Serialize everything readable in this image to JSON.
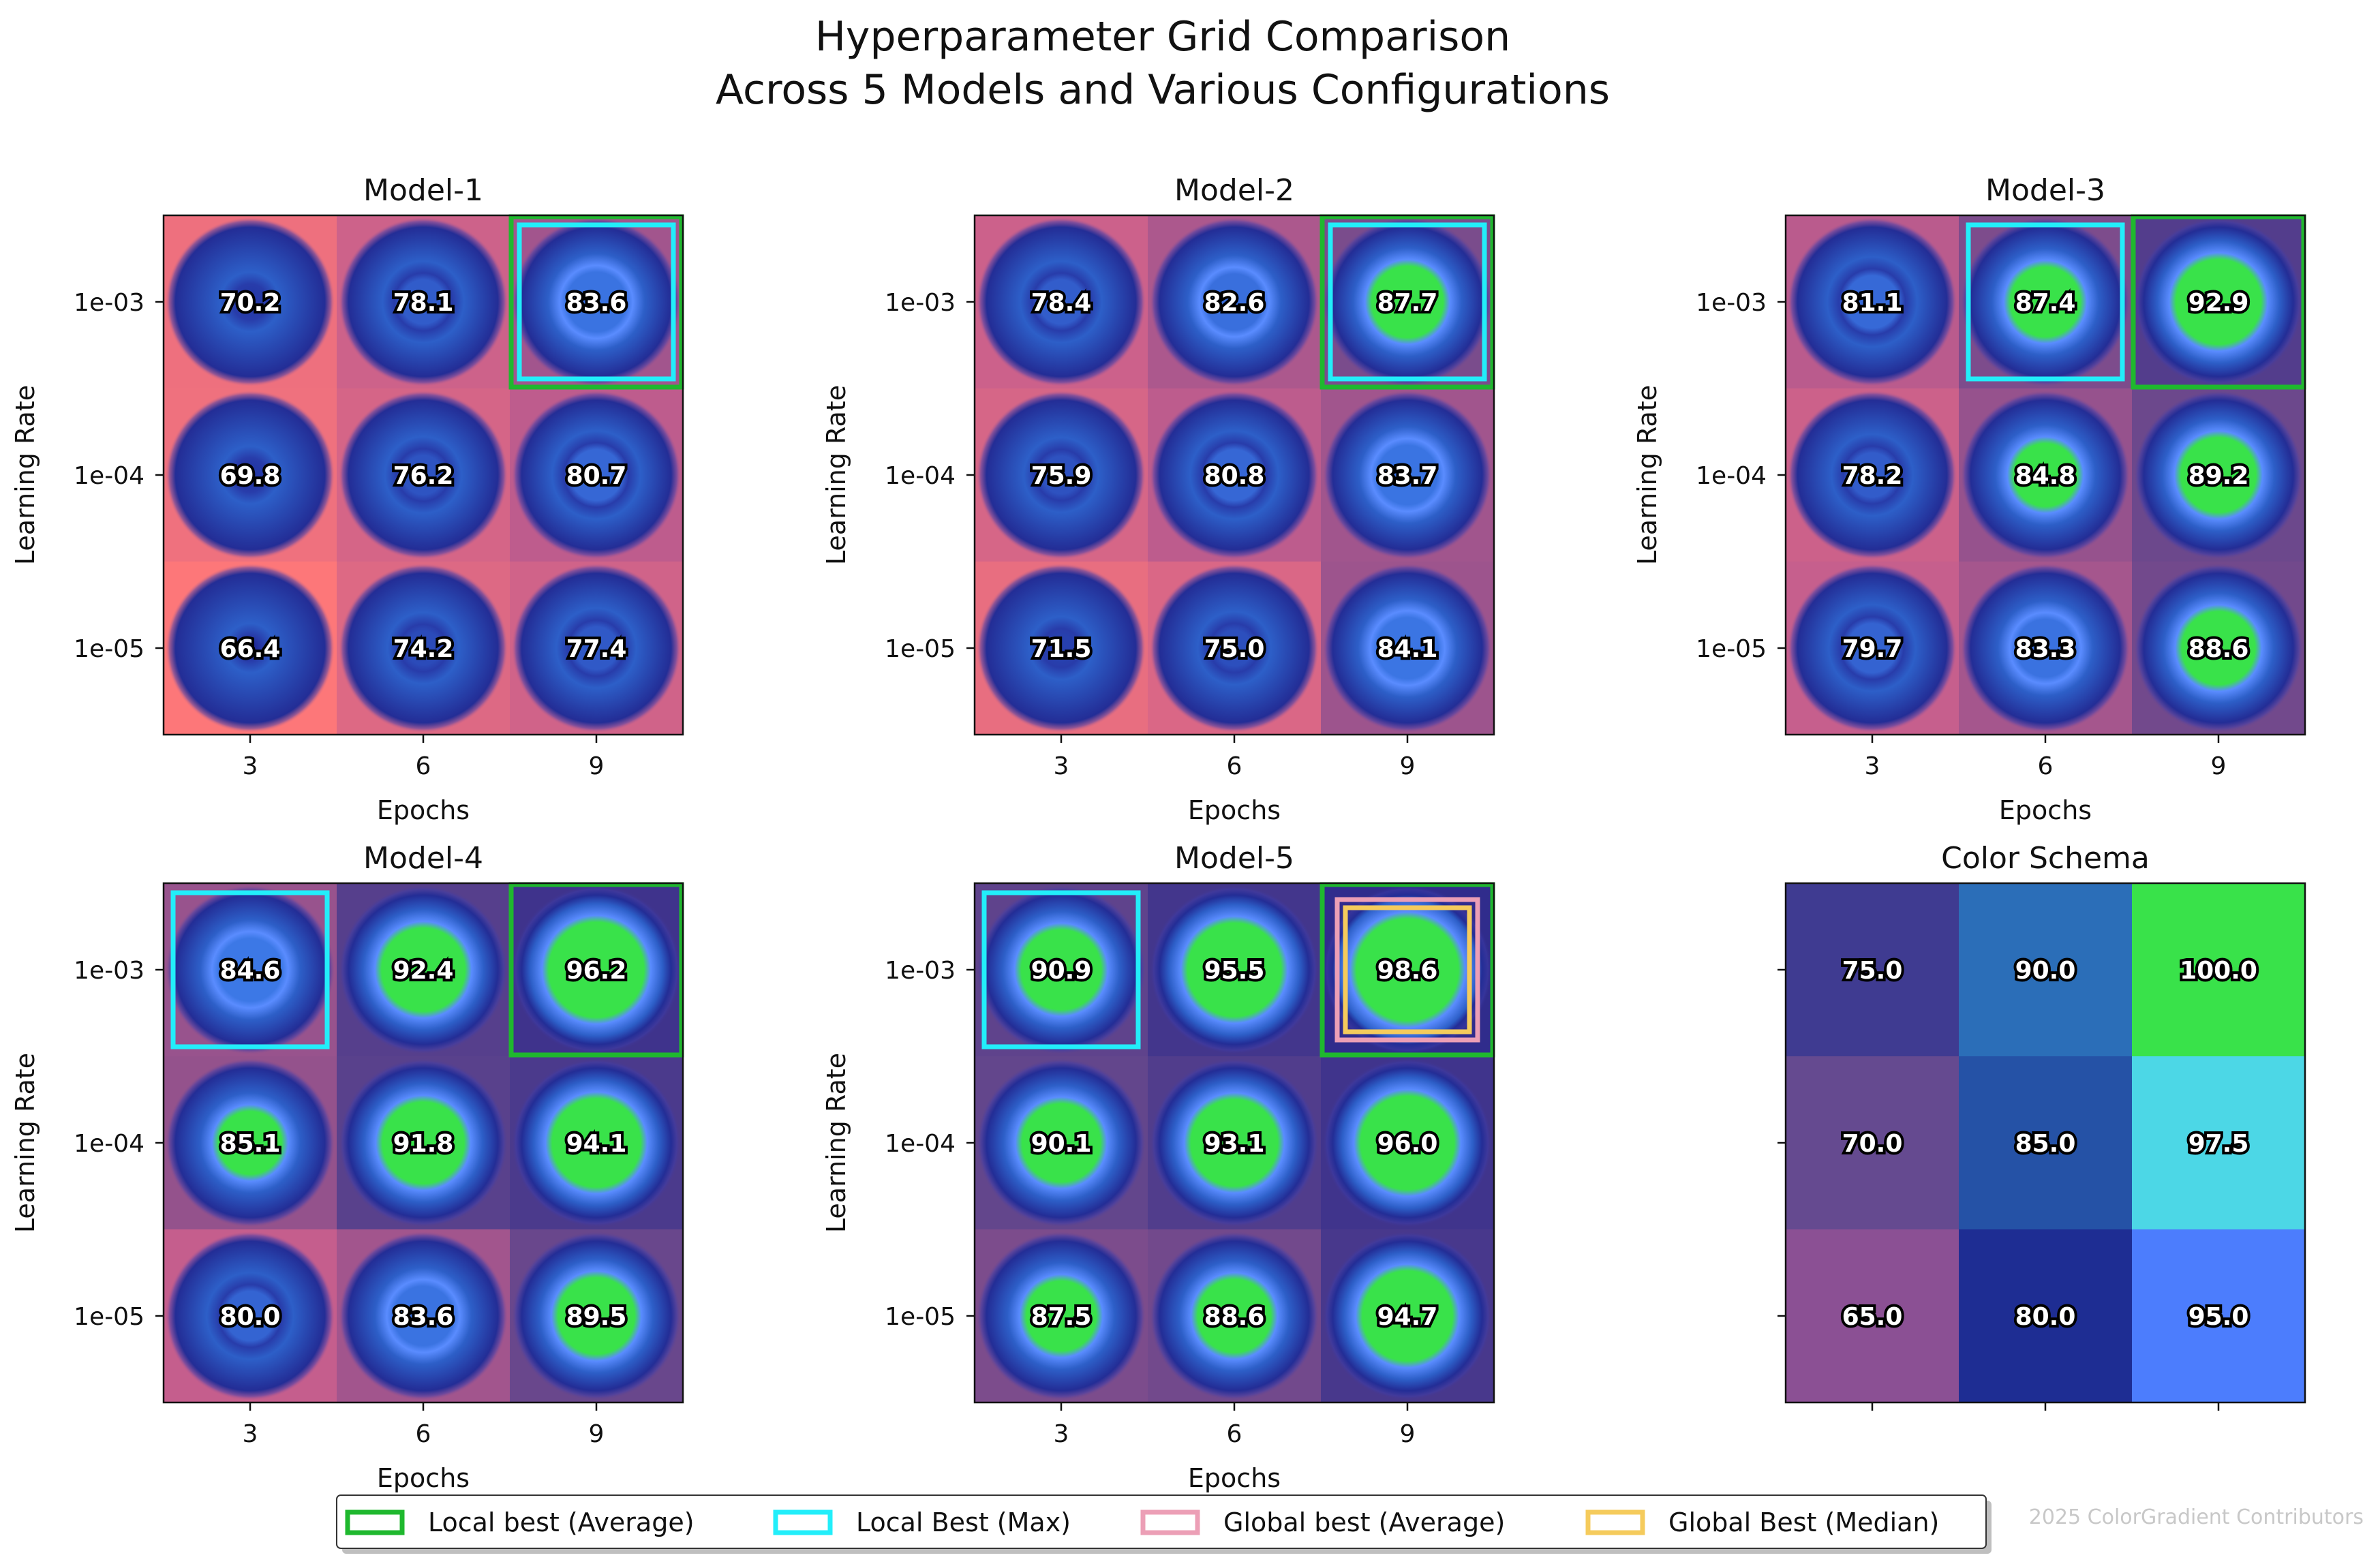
{
  "chart_data": {
    "type": "heatmap",
    "title": "Hyperparameter Grid Comparison\nAcross 5 Models and Various Configurations",
    "xlabel": "Epochs",
    "ylabel": "Learning Rate",
    "x_categories": [
      "3",
      "6",
      "9"
    ],
    "y_categories": [
      "1e-03",
      "1e-04",
      "1e-05"
    ],
    "panels": [
      {
        "name": "Model-1",
        "values": [
          [
            70.2,
            78.1,
            83.6
          ],
          [
            69.8,
            76.2,
            80.7
          ],
          [
            66.4,
            74.2,
            77.4
          ]
        ],
        "highlights": {
          "local_best_average": [
            0,
            2
          ],
          "local_best_max": [
            0,
            2
          ]
        }
      },
      {
        "name": "Model-2",
        "values": [
          [
            78.4,
            82.6,
            87.7
          ],
          [
            75.9,
            80.8,
            83.7
          ],
          [
            71.5,
            75.0,
            84.1
          ]
        ],
        "highlights": {
          "local_best_average": [
            0,
            2
          ],
          "local_best_max": [
            0,
            2
          ]
        }
      },
      {
        "name": "Model-3",
        "values": [
          [
            81.1,
            87.4,
            92.9
          ],
          [
            78.2,
            84.8,
            89.2
          ],
          [
            79.7,
            83.3,
            88.6
          ]
        ],
        "highlights": {
          "local_best_average": [
            0,
            2
          ],
          "local_best_max": [
            0,
            1
          ]
        }
      },
      {
        "name": "Model-4",
        "values": [
          [
            84.6,
            92.4,
            96.2
          ],
          [
            85.1,
            91.8,
            94.1
          ],
          [
            80.0,
            83.6,
            89.5
          ]
        ],
        "highlights": {
          "local_best_average": [
            0,
            2
          ],
          "local_best_max": [
            0,
            0
          ]
        }
      },
      {
        "name": "Model-5",
        "values": [
          [
            90.9,
            95.5,
            98.6
          ],
          [
            90.1,
            93.1,
            96.0
          ],
          [
            87.5,
            88.6,
            94.7
          ]
        ],
        "highlights": {
          "local_best_average": [
            0,
            2
          ],
          "local_best_max": [
            0,
            0
          ],
          "global_best_average": [
            0,
            2
          ],
          "global_best_median": [
            0,
            2
          ]
        }
      }
    ],
    "color_schema": {
      "title": "Color Schema",
      "values": [
        [
          75.0,
          90.0,
          100.0
        ],
        [
          70.0,
          85.0,
          97.5
        ],
        [
          65.0,
          80.0,
          95.0
        ]
      ],
      "colors": [
        [
          "#3f3b91",
          "#2b6eb8",
          "#39e24a"
        ],
        [
          "#654a90",
          "#2552a6",
          "#4cd7e6"
        ],
        [
          "#8b5094",
          "#1e2d93",
          "#4c7dfd"
        ]
      ]
    },
    "legend": [
      {
        "label": "Local best (Average)",
        "color": "#1fb82e"
      },
      {
        "label": "Local Best (Max)",
        "color": "#22eefa"
      },
      {
        "label": "Global best (Average)",
        "color": "#ec9fb6"
      },
      {
        "label": "Global Best (Median)",
        "color": "#f5cb5c"
      }
    ],
    "legend_placement": "bottom-center",
    "credit": "2025 ColorGradient Contributors"
  }
}
